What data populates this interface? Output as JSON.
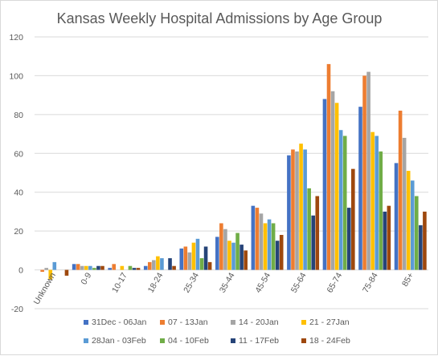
{
  "chart_data": {
    "type": "bar",
    "title": "Kansas Weekly Hospital Admissions by Age Group",
    "xlabel": "",
    "ylabel": "",
    "ylim": [
      -20,
      120
    ],
    "yticks": [
      -20,
      0,
      20,
      40,
      60,
      80,
      100,
      120
    ],
    "grid": true,
    "legend_position": "bottom",
    "categories": [
      "Unknown",
      "0-9",
      "10-17",
      "18-24",
      "25-34",
      "35-44",
      "45-54",
      "55-64",
      "65-74",
      "75-84",
      "85+"
    ],
    "series": [
      {
        "name": "31Dec - 06Jan",
        "color": "#4472C4",
        "values": [
          0,
          3,
          1,
          2,
          11,
          17,
          33,
          59,
          88,
          84,
          55
        ]
      },
      {
        "name": "07 - 13Jan",
        "color": "#ED7D31",
        "values": [
          -1,
          3,
          3,
          4,
          12,
          24,
          32,
          62,
          106,
          100,
          82
        ]
      },
      {
        "name": "14 - 20Jan",
        "color": "#A5A5A5",
        "values": [
          1,
          2,
          0,
          5,
          9,
          21,
          29,
          61,
          92,
          102,
          68
        ]
      },
      {
        "name": "21 - 27Jan",
        "color": "#FFC000",
        "values": [
          -5,
          2,
          2,
          7,
          14,
          15,
          24,
          65,
          86,
          71,
          51
        ]
      },
      {
        "name": "28Jan - 03Feb",
        "color": "#5B9BD5",
        "values": [
          4,
          2,
          0,
          6,
          16,
          14,
          26,
          62,
          72,
          69,
          46
        ]
      },
      {
        "name": "04 - 10Feb",
        "color": "#70AD47",
        "values": [
          0,
          1,
          2,
          0,
          6,
          19,
          24,
          42,
          69,
          61,
          38
        ]
      },
      {
        "name": "11 - 17Feb",
        "color": "#264478",
        "values": [
          0,
          2,
          1,
          6,
          12,
          13,
          15,
          28,
          32,
          30,
          23
        ]
      },
      {
        "name": "18 - 24Feb",
        "color": "#9E480E",
        "values": [
          -3,
          2,
          1,
          2,
          4,
          10,
          18,
          38,
          52,
          33,
          30
        ]
      }
    ]
  }
}
